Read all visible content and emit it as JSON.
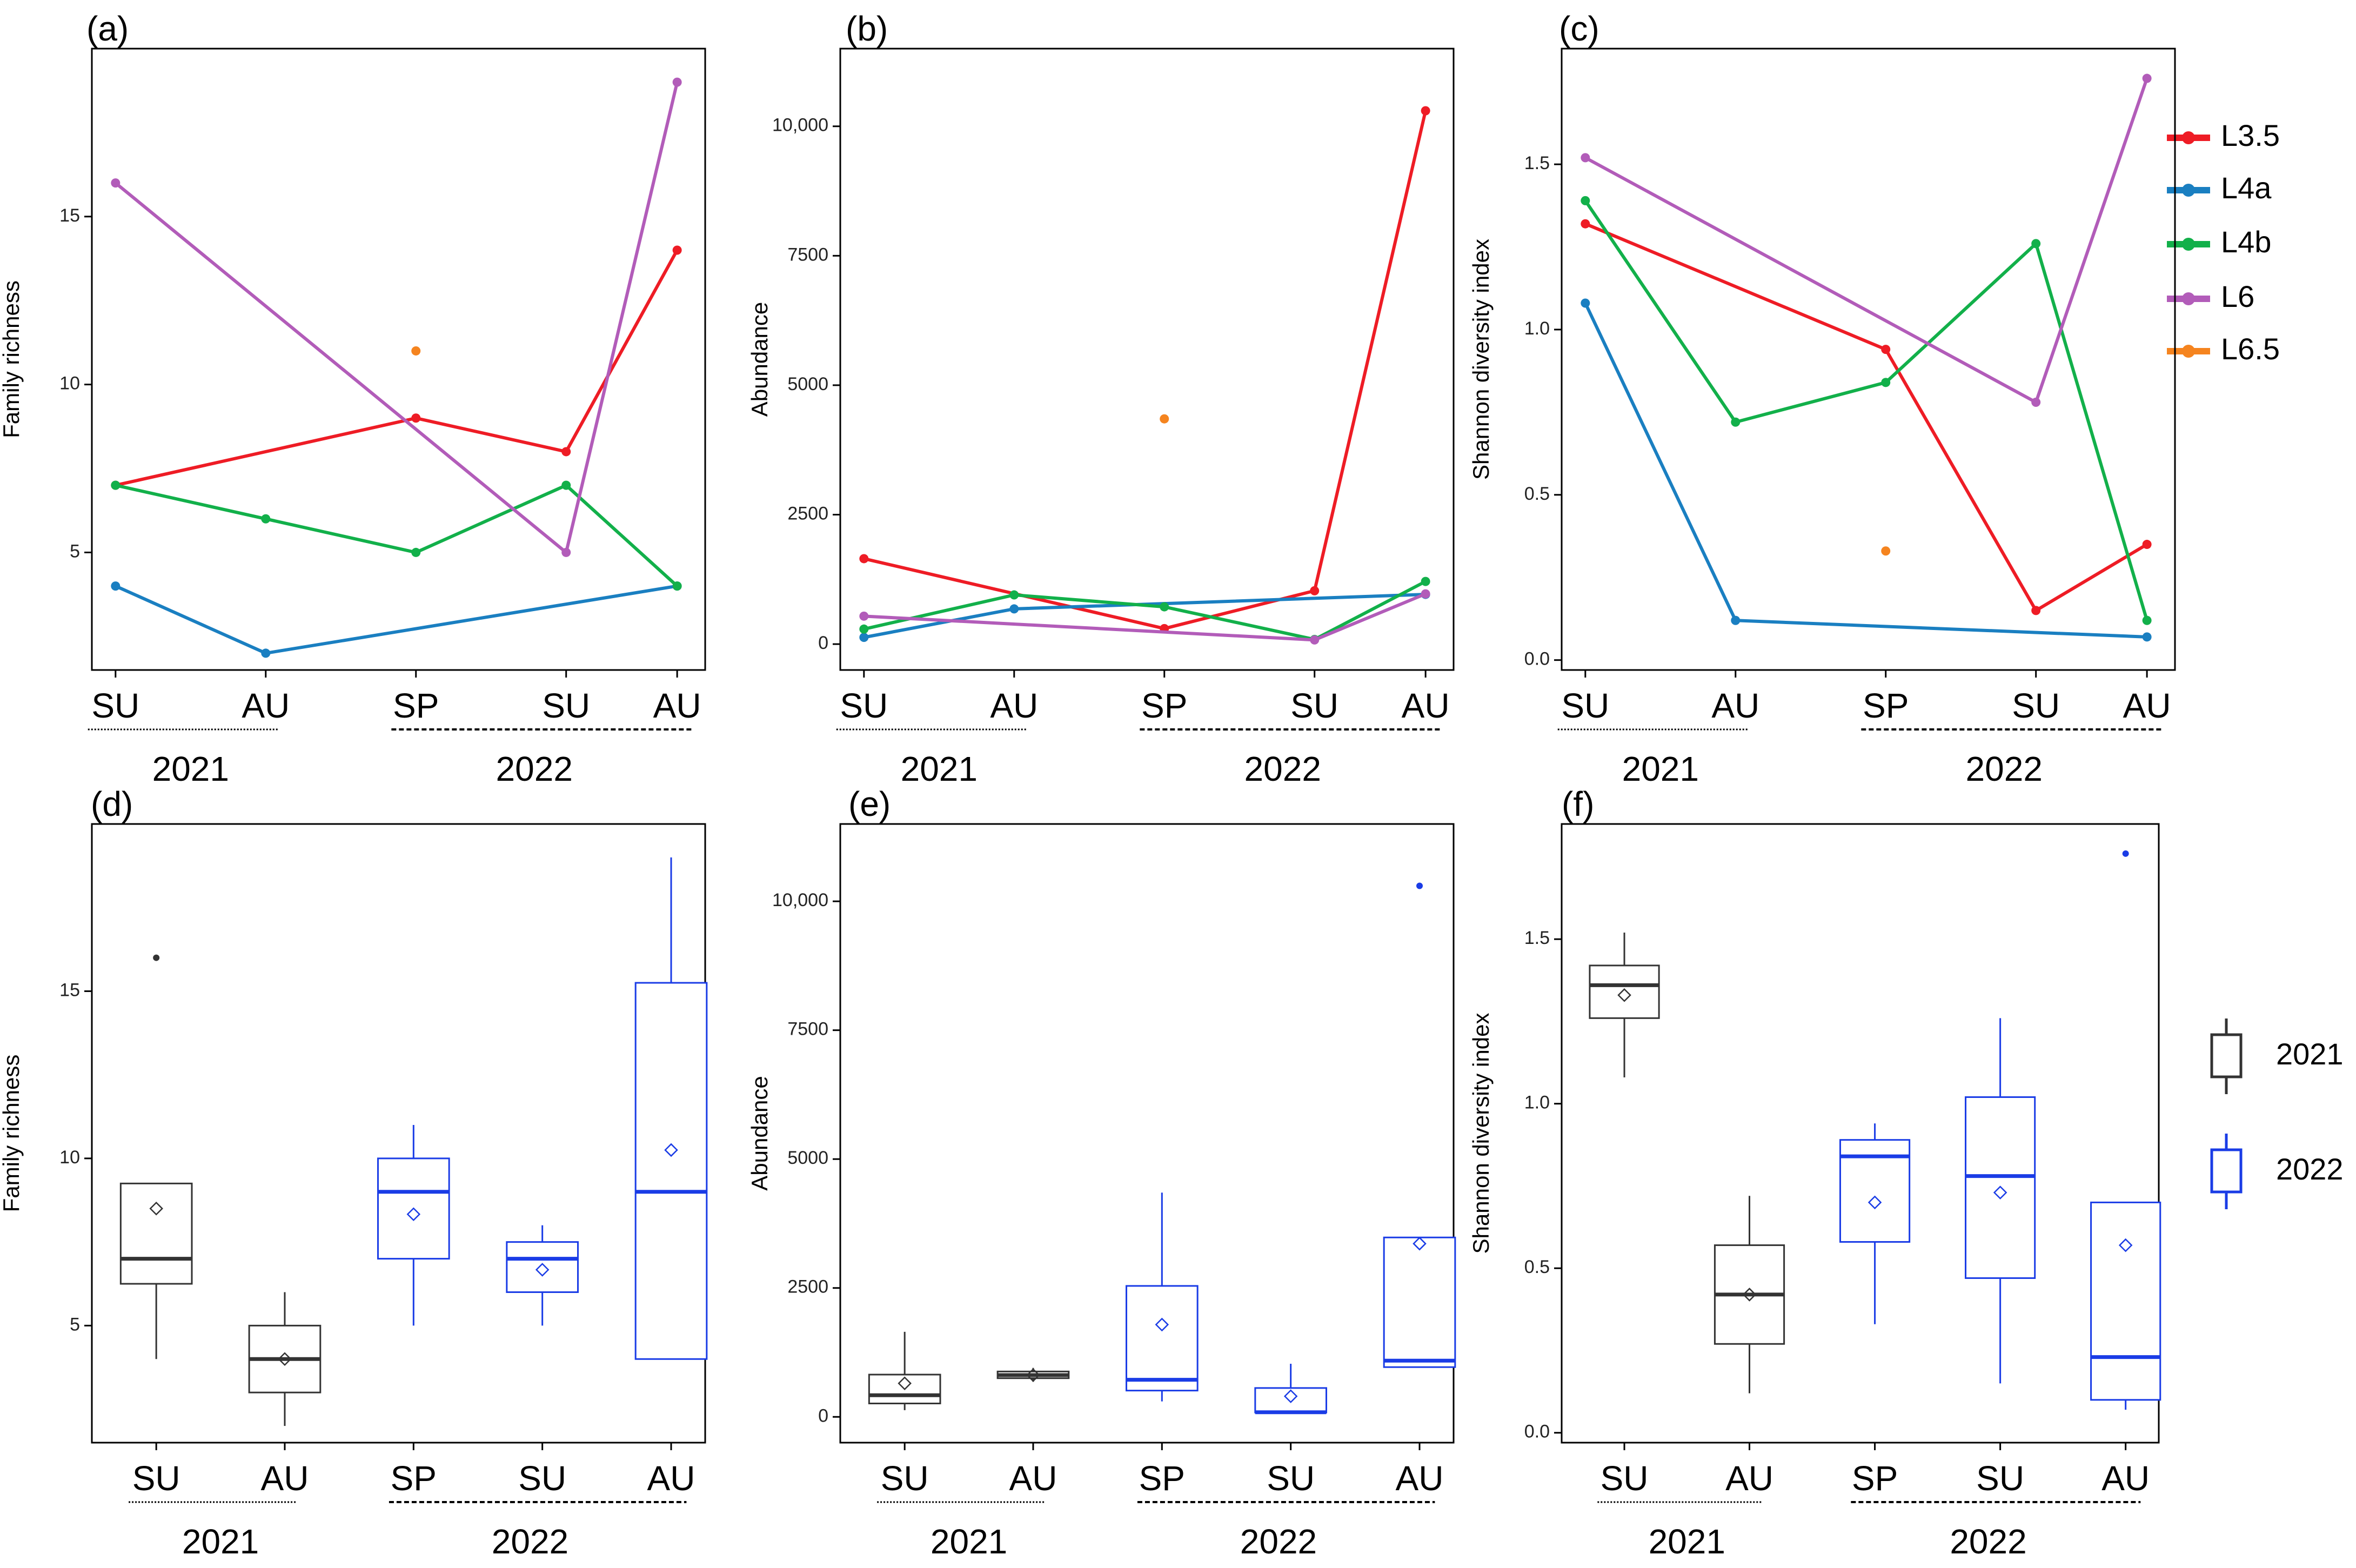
{
  "categories": [
    "SU",
    "AU",
    "SP",
    "SU",
    "AU"
  ],
  "years": [
    "2021",
    "2022"
  ],
  "colors": {
    "L3.5": "#ee1c25",
    "L4a": "#1a7fc1",
    "L4b": "#12b04a",
    "L6": "#b25cb9",
    "L6.5": "#f5841f",
    "y2021": "#333333",
    "y2022": "#1a3ce6"
  },
  "legend_top": [
    "L3.5",
    "L4a",
    "L4b",
    "L6",
    "L6.5"
  ],
  "legend_bottom": [
    "2021",
    "2022"
  ],
  "chart_data": [
    {
      "panel": "(a)",
      "type": "line",
      "ylabel": "Family richness",
      "ylim": [
        1.5,
        20
      ],
      "yticks": [
        5,
        10,
        15
      ],
      "ytick_labels": [
        "5",
        "10",
        "15"
      ],
      "series": [
        {
          "name": "L3.5",
          "values": [
            7,
            null,
            9,
            8,
            14
          ]
        },
        {
          "name": "L4a",
          "values": [
            4,
            2,
            null,
            null,
            4
          ]
        },
        {
          "name": "L4b",
          "values": [
            7,
            6,
            5,
            7,
            4
          ]
        },
        {
          "name": "L6",
          "values": [
            16,
            null,
            null,
            5,
            19
          ]
        },
        {
          "name": "L6.5",
          "values": [
            null,
            null,
            11,
            null,
            null
          ]
        }
      ]
    },
    {
      "panel": "(b)",
      "type": "line",
      "ylabel": "Abundance",
      "ylim": [
        -500,
        11500
      ],
      "yticks": [
        0,
        2500,
        5000,
        7500,
        10000
      ],
      "ytick_labels": [
        "0",
        "2500",
        "5000",
        "7500",
        "10,000"
      ],
      "series": [
        {
          "name": "L3.5",
          "values": [
            1650,
            null,
            300,
            1030,
            10300
          ]
        },
        {
          "name": "L4a",
          "values": [
            130,
            680,
            null,
            null,
            960
          ]
        },
        {
          "name": "L4b",
          "values": [
            290,
            950,
            720,
            90,
            1210
          ]
        },
        {
          "name": "L6",
          "values": [
            540,
            null,
            null,
            80,
            970
          ]
        },
        {
          "name": "L6.5",
          "values": [
            null,
            null,
            4350,
            null,
            null
          ]
        }
      ]
    },
    {
      "panel": "(c)",
      "type": "line",
      "ylabel": "Shannon diversity index",
      "ylim": [
        -0.03,
        1.85
      ],
      "yticks": [
        0,
        0.5,
        1,
        1.5
      ],
      "ytick_labels": [
        "0.0",
        "0.5",
        "1.0",
        "1.5"
      ],
      "series": [
        {
          "name": "L3.5",
          "values": [
            1.32,
            null,
            0.94,
            0.15,
            0.35
          ]
        },
        {
          "name": "L4a",
          "values": [
            1.08,
            0.12,
            null,
            null,
            0.07
          ]
        },
        {
          "name": "L4b",
          "values": [
            1.39,
            0.72,
            0.84,
            1.26,
            0.12
          ]
        },
        {
          "name": "L6",
          "values": [
            1.52,
            null,
            null,
            0.78,
            1.76
          ]
        },
        {
          "name": "L6.5",
          "values": [
            null,
            null,
            0.33,
            null,
            null
          ]
        }
      ]
    },
    {
      "panel": "(d)",
      "type": "box",
      "ylabel": "Family richness",
      "ylim": [
        1.5,
        20
      ],
      "yticks": [
        5,
        10,
        15
      ],
      "ytick_labels": [
        "5",
        "10",
        "15"
      ],
      "boxes": [
        {
          "year": "2021",
          "whislo": 4,
          "q1": 6.25,
          "med": 7,
          "q3": 9.25,
          "whishi": 9.25,
          "mean": 8.5,
          "fliers": [
            16
          ]
        },
        {
          "year": "2021",
          "whislo": 2,
          "q1": 3,
          "med": 4,
          "q3": 5,
          "whishi": 6,
          "mean": 4,
          "fliers": []
        },
        {
          "year": "2022",
          "whislo": 5,
          "q1": 7,
          "med": 9,
          "q3": 10,
          "whishi": 11,
          "mean": 8.33,
          "fliers": []
        },
        {
          "year": "2022",
          "whislo": 5,
          "q1": 6,
          "med": 7,
          "q3": 7.5,
          "whishi": 8,
          "mean": 6.67,
          "fliers": []
        },
        {
          "year": "2022",
          "whislo": 4,
          "q1": 4,
          "med": 9,
          "q3": 15.25,
          "whishi": 19,
          "mean": 10.25,
          "fliers": []
        }
      ]
    },
    {
      "panel": "(e)",
      "type": "box",
      "ylabel": "Abundance",
      "ylim": [
        -500,
        11500
      ],
      "yticks": [
        0,
        2500,
        5000,
        7500,
        10000
      ],
      "ytick_labels": [
        "0",
        "2500",
        "5000",
        "7500",
        "10,000"
      ],
      "boxes": [
        {
          "year": "2021",
          "whislo": 130,
          "q1": 260,
          "med": 420,
          "q3": 820,
          "whishi": 1650,
          "mean": 650,
          "fliers": []
        },
        {
          "year": "2021",
          "whislo": 680,
          "q1": 750,
          "med": 810,
          "q3": 880,
          "whishi": 950,
          "mean": 810,
          "fliers": []
        },
        {
          "year": "2022",
          "whislo": 300,
          "q1": 510,
          "med": 720,
          "q3": 2540,
          "whishi": 4350,
          "mean": 1790,
          "fliers": []
        },
        {
          "year": "2022",
          "whislo": 80,
          "q1": 85,
          "med": 90,
          "q3": 560,
          "whishi": 1030,
          "mean": 400,
          "fliers": []
        },
        {
          "year": "2022",
          "whislo": 960,
          "q1": 965,
          "med": 1090,
          "q3": 3480,
          "whishi": 3480,
          "mean": 3360,
          "fliers": [
            10300
          ]
        }
      ]
    },
    {
      "panel": "(f)",
      "type": "box",
      "ylabel": "Shannon diversity index",
      "ylim": [
        -0.03,
        1.85
      ],
      "yticks": [
        0,
        0.5,
        1,
        1.5
      ],
      "ytick_labels": [
        "0.0",
        "0.5",
        "1.0",
        "1.5"
      ],
      "boxes": [
        {
          "year": "2021",
          "whislo": 1.08,
          "q1": 1.26,
          "med": 1.36,
          "q3": 1.42,
          "whishi": 1.52,
          "mean": 1.33,
          "fliers": []
        },
        {
          "year": "2021",
          "whislo": 0.12,
          "q1": 0.27,
          "med": 0.42,
          "q3": 0.57,
          "whishi": 0.72,
          "mean": 0.42,
          "fliers": []
        },
        {
          "year": "2022",
          "whislo": 0.33,
          "q1": 0.58,
          "med": 0.84,
          "q3": 0.89,
          "whishi": 0.94,
          "mean": 0.7,
          "fliers": []
        },
        {
          "year": "2022",
          "whislo": 0.15,
          "q1": 0.47,
          "med": 0.78,
          "q3": 1.02,
          "whishi": 1.26,
          "mean": 0.73,
          "fliers": []
        },
        {
          "year": "2022",
          "whislo": 0.07,
          "q1": 0.1,
          "med": 0.23,
          "q3": 0.7,
          "whishi": 0.7,
          "mean": 0.57,
          "fliers": [
            1.76
          ]
        }
      ]
    }
  ]
}
